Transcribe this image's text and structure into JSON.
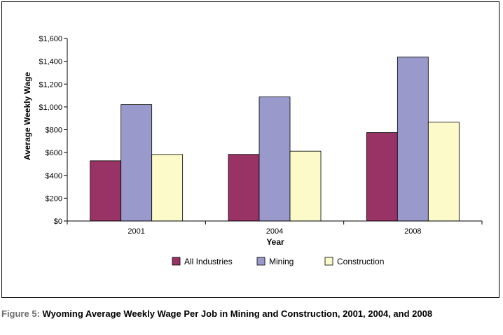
{
  "chart_data": {
    "type": "bar",
    "categories": [
      "2001",
      "2004",
      "2008"
    ],
    "series": [
      {
        "name": "All Industries",
        "color": "#993366",
        "values": [
          528,
          584,
          775
        ]
      },
      {
        "name": "Mining",
        "color": "#9999cc",
        "values": [
          1020,
          1088,
          1438
        ]
      },
      {
        "name": "Construction",
        "color": "#fbfac8",
        "values": [
          583,
          612,
          866
        ]
      }
    ],
    "xlabel": "Year",
    "ylabel": "Average Weekly Wage",
    "ylim": [
      0,
      1600
    ],
    "yticks": [
      "$0",
      "$200",
      "$400",
      "$600",
      "$800",
      "$1,000",
      "$1,200",
      "$1,400",
      "$1,600"
    ],
    "grid": false,
    "legend_position": "bottom"
  },
  "caption": {
    "lead": "Figure 5:",
    "text": "Wyoming Average Weekly Wage Per Job in Mining and Construction, 2001, 2004, and 2008"
  }
}
